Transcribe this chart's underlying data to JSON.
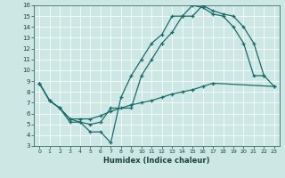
{
  "xlabel": "Humidex (Indice chaleur)",
  "ylabel": "",
  "xlim": [
    -0.5,
    23.5
  ],
  "ylim": [
    3,
    16
  ],
  "xticks": [
    0,
    1,
    2,
    3,
    4,
    5,
    6,
    7,
    8,
    9,
    10,
    11,
    12,
    13,
    14,
    15,
    16,
    17,
    18,
    19,
    20,
    21,
    22,
    23
  ],
  "yticks": [
    3,
    4,
    5,
    6,
    7,
    8,
    9,
    10,
    11,
    12,
    13,
    14,
    15,
    16
  ],
  "bg_color": "#cde8e4",
  "line_color": "#1a6b6b",
  "line1_x": [
    0,
    1,
    2,
    3,
    4,
    5,
    6,
    7,
    8,
    9,
    10,
    11,
    12,
    13,
    14,
    15,
    16,
    17,
    18,
    19,
    20,
    21,
    22
  ],
  "line1_y": [
    8.8,
    7.2,
    6.5,
    5.2,
    5.2,
    4.3,
    4.3,
    3.3,
    7.5,
    9.5,
    11.0,
    12.5,
    13.3,
    15.0,
    15.0,
    16.0,
    15.8,
    15.2,
    15.0,
    14.0,
    12.5,
    9.5,
    9.5
  ],
  "line2_x": [
    0,
    1,
    2,
    3,
    4,
    5,
    6,
    7,
    9,
    10,
    11,
    12,
    13,
    14,
    15,
    16,
    17,
    18,
    19,
    20,
    21,
    22,
    23
  ],
  "line2_y": [
    8.8,
    7.2,
    6.5,
    5.5,
    5.2,
    5.0,
    5.2,
    6.5,
    6.5,
    9.5,
    11.0,
    12.5,
    13.5,
    15.0,
    15.0,
    16.0,
    15.5,
    15.2,
    15.0,
    14.0,
    12.5,
    9.5,
    8.5
  ],
  "line3_x": [
    0,
    1,
    2,
    3,
    4,
    5,
    6,
    7,
    8,
    9,
    10,
    11,
    12,
    13,
    14,
    15,
    16,
    17,
    23
  ],
  "line3_y": [
    8.8,
    7.2,
    6.5,
    5.5,
    5.5,
    5.5,
    5.8,
    6.2,
    6.5,
    6.8,
    7.0,
    7.2,
    7.5,
    7.8,
    8.0,
    8.2,
    8.5,
    8.8,
    8.5
  ]
}
